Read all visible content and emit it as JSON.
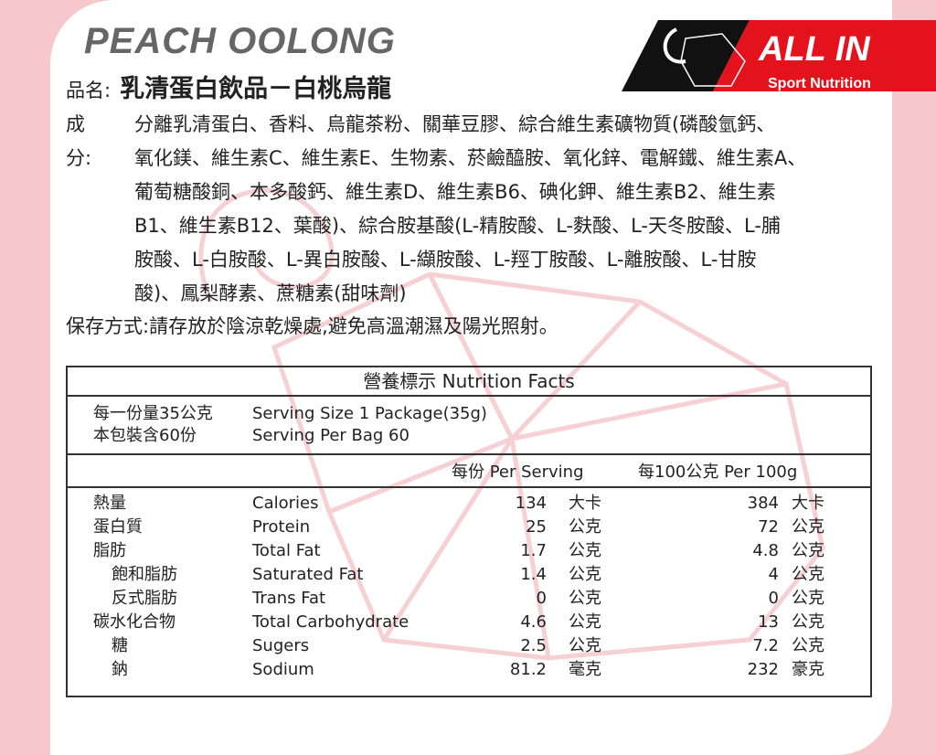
{
  "title": "PEACH OOLONG",
  "brand": {
    "name": "ALL IN",
    "tagline": "Sport Nutrition",
    "colors": {
      "red": "#e3121c",
      "black": "#111111"
    }
  },
  "product": {
    "label": "品名:",
    "value": "乳清蛋白飲品－白桃烏龍"
  },
  "ingredients": {
    "label": "成分:",
    "lines": [
      "分離乳清蛋白、香料、烏龍茶粉、關華豆膠、綜合維生素礦物質(磷酸氫鈣、",
      "氧化鎂、維生素C、維生素E、生物素、菸鹼醯胺、氧化鋅、電解鐵、維生素A、",
      "葡萄糖酸銅、本多酸鈣、維生素D、維生素B6、碘化鉀、維生素B2、維生素",
      "B1、維生素B12、葉酸)、綜合胺基酸(L-精胺酸、L-麩酸、L-天冬胺酸、L-脯",
      "胺酸、L-白胺酸、L-異白胺酸、L-纈胺酸、L-羥丁胺酸、L-離胺酸、L-甘胺",
      "酸)、鳳梨酵素、蔗糖素(甜味劑)"
    ]
  },
  "storage": "保存方式:請存放於陰涼乾燥處,避免高溫潮濕及陽光照射。",
  "nutrition": {
    "title": "營養標示  Nutrition Facts",
    "serving_zh": "每一份量35公克",
    "serving_en": "Serving Size 1 Package(35g)",
    "per_bag_zh": "本包裝含60份",
    "per_bag_en": "Serving Per Bag 60",
    "col_per_serving": "每份 Per Serving",
    "col_per_100g": "每100公克 Per 100g",
    "rows": [
      {
        "zh": "熱量",
        "en": "Calories",
        "serving": "134",
        "unit1": "大卡",
        "per100": "384",
        "unit2": "大卡"
      },
      {
        "zh": "蛋白質",
        "en": "Protein",
        "serving": "25",
        "unit1": "公克",
        "per100": "72",
        "unit2": "公克"
      },
      {
        "zh": "脂肪",
        "en": "Total Fat",
        "serving": "1.7",
        "unit1": "公克",
        "per100": "4.8",
        "unit2": "公克"
      },
      {
        "zh": "飽和脂肪",
        "en": "Saturated Fat",
        "serving": "1.4",
        "unit1": "公克",
        "per100": "4",
        "unit2": "公克"
      },
      {
        "zh": "反式脂肪",
        "en": "Trans Fat",
        "serving": "0",
        "unit1": "公克",
        "per100": "0",
        "unit2": "公克"
      },
      {
        "zh": "碳水化合物",
        "en": "Total Carbohydrate",
        "serving": "4.6",
        "unit1": "公克",
        "per100": "13",
        "unit2": "公克"
      },
      {
        "zh": "糖",
        "en": "Sugers",
        "serving": "2.5",
        "unit1": "公克",
        "per100": "7.2",
        "unit2": "公克"
      },
      {
        "zh": "鈉",
        "en": "Sodium",
        "serving": "81.2",
        "unit1": "毫克",
        "per100": "232",
        "unit2": "豪克"
      }
    ]
  }
}
